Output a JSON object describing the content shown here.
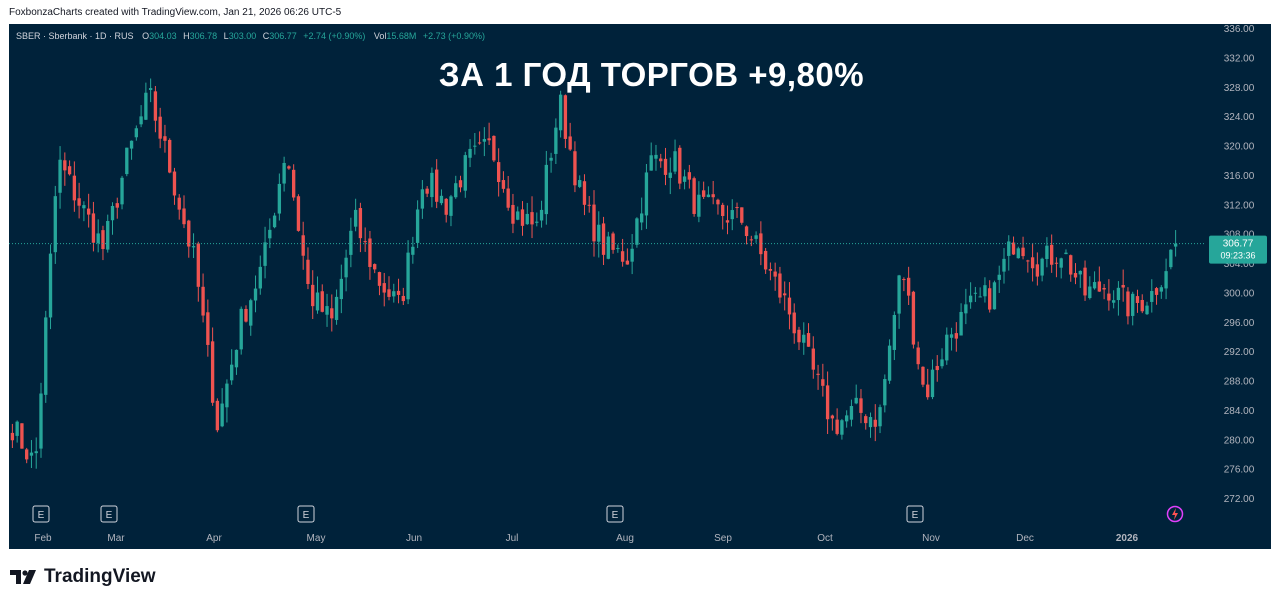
{
  "attribution": "FoxbonzaCharts created with TradingView.com, Jan 21, 2026 06:26 UTC-5",
  "headline": "ЗА 1 ГОД ТОРГОВ +9,80%",
  "symbol_info": {
    "name": "SBER · Sberbank · 1D · RUS",
    "o_label": "O",
    "o_value": "304.03",
    "h_label": "H",
    "h_value": "306.78",
    "l_label": "L",
    "l_value": "303.00",
    "c_label": "C",
    "c_value": "306.77",
    "change": "+2.74 (+0.90%)",
    "vol_label": "Vol",
    "vol_value": "15.68M",
    "vol_change": "+2.73 (+0.90%)"
  },
  "last_price": {
    "value": "306.77",
    "countdown": "09:23:36"
  },
  "brand": "TradingView",
  "colors": {
    "background": "#00223a",
    "up": "#26a69a",
    "down": "#ef5350",
    "price_tag": "#26a69a",
    "axis_text": "#b2b5be"
  },
  "chart_data": {
    "type": "candlestick",
    "ylim": [
      270,
      336
    ],
    "y_ticks": [
      "272.00",
      "276.00",
      "280.00",
      "284.00",
      "288.00",
      "292.00",
      "296.00",
      "300.00",
      "304.00",
      "308.00",
      "312.00",
      "316.00",
      "320.00",
      "324.00",
      "328.00",
      "332.00",
      "336.00"
    ],
    "x_ticks": [
      "Feb",
      "Mar",
      "Apr",
      "May",
      "Jun",
      "Jul",
      "Aug",
      "Sep",
      "Oct",
      "Nov",
      "Dec",
      "2026"
    ],
    "earnings_markers": [
      "E",
      "E",
      "E",
      "E",
      "E"
    ],
    "series": [
      {
        "price": 282.0,
        "month": "Jan"
      },
      {
        "price": 276.5,
        "month": "Feb"
      },
      {
        "price": 318.0,
        "month": "Feb"
      },
      {
        "price": 312.0,
        "month": "Feb"
      },
      {
        "price": 306.0,
        "month": "Mar"
      },
      {
        "price": 318.0,
        "month": "Mar"
      },
      {
        "price": 327.0,
        "month": "Mar"
      },
      {
        "price": 316.0,
        "month": "Mar"
      },
      {
        "price": 304.0,
        "month": "Apr"
      },
      {
        "price": 282.0,
        "month": "Apr"
      },
      {
        "price": 296.0,
        "month": "Apr"
      },
      {
        "price": 304.0,
        "month": "Apr"
      },
      {
        "price": 320.0,
        "month": "May"
      },
      {
        "price": 300.0,
        "month": "May"
      },
      {
        "price": 296.0,
        "month": "May"
      },
      {
        "price": 310.0,
        "month": "May"
      },
      {
        "price": 302.0,
        "month": "Jun"
      },
      {
        "price": 298.0,
        "month": "Jun"
      },
      {
        "price": 316.0,
        "month": "Jun"
      },
      {
        "price": 312.0,
        "month": "Jun"
      },
      {
        "price": 318.0,
        "month": "Jul"
      },
      {
        "price": 320.0,
        "month": "Jul"
      },
      {
        "price": 311.0,
        "month": "Jul"
      },
      {
        "price": 309.0,
        "month": "Jul"
      },
      {
        "price": 326.0,
        "month": "Jul"
      },
      {
        "price": 312.0,
        "month": "Jul"
      },
      {
        "price": 306.0,
        "month": "Aug"
      },
      {
        "price": 305.0,
        "month": "Aug"
      },
      {
        "price": 318.0,
        "month": "Aug"
      },
      {
        "price": 318.0,
        "month": "Aug"
      },
      {
        "price": 312.0,
        "month": "Aug"
      },
      {
        "price": 311.0,
        "month": "Sep"
      },
      {
        "price": 310.0,
        "month": "Sep"
      },
      {
        "price": 304.0,
        "month": "Sep"
      },
      {
        "price": 298.0,
        "month": "Sep"
      },
      {
        "price": 290.0,
        "month": "Oct"
      },
      {
        "price": 282.0,
        "month": "Oct"
      },
      {
        "price": 284.0,
        "month": "Oct"
      },
      {
        "price": 283.0,
        "month": "Oct"
      },
      {
        "price": 304.0,
        "month": "Oct"
      },
      {
        "price": 286.0,
        "month": "Nov"
      },
      {
        "price": 294.0,
        "month": "Nov"
      },
      {
        "price": 298.0,
        "month": "Nov"
      },
      {
        "price": 300.0,
        "month": "Nov"
      },
      {
        "price": 308.0,
        "month": "Dec"
      },
      {
        "price": 304.0,
        "month": "Dec"
      },
      {
        "price": 306.0,
        "month": "Dec"
      },
      {
        "price": 300.0,
        "month": "Dec"
      },
      {
        "price": 301.0,
        "month": "Dec"
      },
      {
        "price": 298.0,
        "month": "Jan 2026"
      },
      {
        "price": 300.0,
        "month": "Jan 2026"
      },
      {
        "price": 306.77,
        "month": "Jan 2026"
      }
    ],
    "grid": false
  }
}
